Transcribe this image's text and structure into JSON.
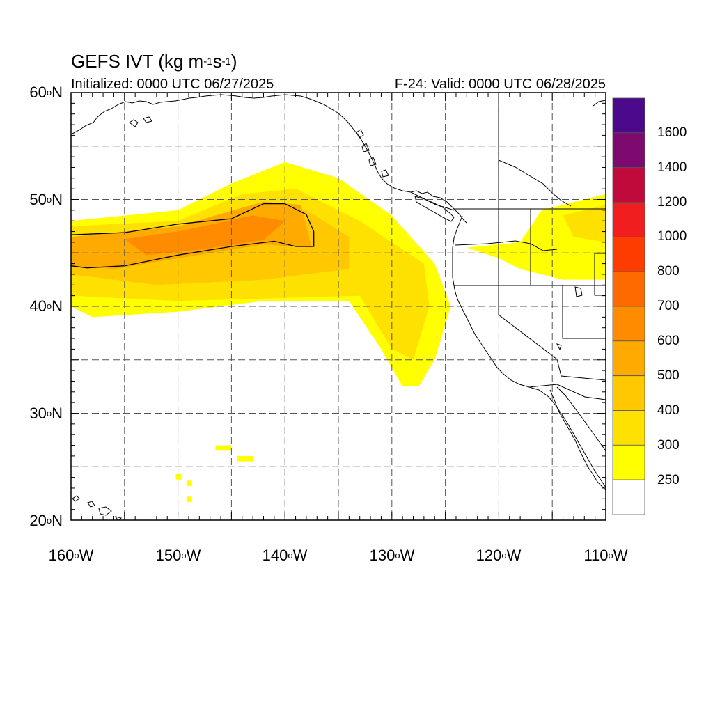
{
  "header": {
    "title": "GEFS IVT (kg m",
    "title_exp1": "-1",
    "title_mid": "s",
    "title_exp2": "-1",
    "title_close": ")",
    "initialized": "Initialized: 0000 UTC 06/27/2025",
    "valid": "F-24: Valid: 0000 UTC 06/28/2025"
  },
  "axes": {
    "lat_labels": [
      {
        "deg": "60",
        "sym": "o",
        "hem": "N"
      },
      {
        "deg": "50",
        "sym": "o",
        "hem": "N"
      },
      {
        "deg": "40",
        "sym": "o",
        "hem": "N"
      },
      {
        "deg": "30",
        "sym": "o",
        "hem": "N"
      },
      {
        "deg": "20",
        "sym": "o",
        "hem": "N"
      }
    ],
    "lon_labels": [
      {
        "deg": "160",
        "sym": "o",
        "hem": "W"
      },
      {
        "deg": "150",
        "sym": "o",
        "hem": "W"
      },
      {
        "deg": "140",
        "sym": "o",
        "hem": "W"
      },
      {
        "deg": "130",
        "sym": "o",
        "hem": "W"
      },
      {
        "deg": "120",
        "sym": "o",
        "hem": "W"
      },
      {
        "deg": "110",
        "sym": "o",
        "hem": "W"
      }
    ],
    "lon_range": [
      -160,
      -110
    ],
    "lat_range": [
      20,
      60
    ],
    "grid": true
  },
  "colorbar": {
    "labels": [
      "1600",
      "1400",
      "1200",
      "1000",
      "800",
      "700",
      "600",
      "500",
      "400",
      "300",
      "250"
    ],
    "colors": [
      "#4b0a8c",
      "#7d0a6e",
      "#c00a3c",
      "#f01e1e",
      "#ff3c00",
      "#ff6a00",
      "#ff8c00",
      "#ffaa00",
      "#ffc800",
      "#ffe100",
      "#ffff00",
      "#ffffff"
    ]
  },
  "chart_data": {
    "type": "heatmap",
    "field": "IVT",
    "units": "kg m-1 s-1",
    "levels": [
      250,
      300,
      400,
      500,
      600,
      700,
      800,
      1000,
      1200,
      1400,
      1600
    ],
    "regions": [
      {
        "level": 250,
        "polygon": [
          [
            -160,
            48
          ],
          [
            -150,
            49
          ],
          [
            -145,
            51.5
          ],
          [
            -140,
            53.5
          ],
          [
            -135,
            52
          ],
          [
            -130,
            48.5
          ],
          [
            -126,
            44
          ],
          [
            -124.5,
            40
          ],
          [
            -126,
            35
          ],
          [
            -127.5,
            32.5
          ],
          [
            -129,
            32.5
          ],
          [
            -131,
            36
          ],
          [
            -134,
            40.5
          ],
          [
            -142,
            40.5
          ],
          [
            -150,
            39.5
          ],
          [
            -158,
            39
          ],
          [
            -160,
            40
          ]
        ]
      },
      {
        "level": 300,
        "polygon": [
          [
            -160,
            47.5
          ],
          [
            -150,
            48
          ],
          [
            -144,
            50.5
          ],
          [
            -139,
            51
          ],
          [
            -133,
            48
          ],
          [
            -127,
            44
          ],
          [
            -126.5,
            40
          ],
          [
            -128,
            35
          ],
          [
            -130,
            36
          ],
          [
            -133,
            41
          ],
          [
            -150,
            40.5
          ],
          [
            -160,
            41
          ]
        ]
      },
      {
        "level": 400,
        "polygon": [
          [
            -160,
            46.5
          ],
          [
            -150,
            47
          ],
          [
            -143,
            49.5
          ],
          [
            -138,
            49
          ],
          [
            -134,
            46.5
          ],
          [
            -134,
            43.5
          ],
          [
            -142,
            42.5
          ],
          [
            -152,
            42
          ],
          [
            -160,
            43
          ]
        ]
      },
      {
        "level": 500,
        "polygon": [
          [
            -160,
            46.5
          ],
          [
            -150,
            47.5
          ],
          [
            -142,
            49.8
          ],
          [
            -138.5,
            49.5
          ],
          [
            -137.5,
            45.5
          ],
          [
            -142,
            45.8
          ],
          [
            -150,
            44.5
          ],
          [
            -156,
            43.5
          ],
          [
            -160,
            43.8
          ]
        ]
      },
      {
        "level": 600,
        "polygon": [
          [
            -155,
            46.3
          ],
          [
            -150,
            47
          ],
          [
            -143,
            48.5
          ],
          [
            -140,
            48
          ],
          [
            -142,
            46.2
          ],
          [
            -148,
            45.3
          ],
          [
            -153,
            44.8
          ]
        ]
      },
      {
        "level": 250,
        "polygon": [
          [
            -116,
            49
          ],
          [
            -110,
            50.5
          ],
          [
            -110,
            42.5
          ],
          [
            -114,
            42.5
          ],
          [
            -118,
            43.5
          ],
          [
            -120,
            44.5
          ],
          [
            -123,
            45.5
          ],
          [
            -118,
            46
          ]
        ]
      },
      {
        "level": 300,
        "polygon": [
          [
            -114,
            48.5
          ],
          [
            -110,
            49.5
          ],
          [
            -110,
            46
          ],
          [
            -113,
            46.5
          ]
        ]
      },
      {
        "level": 250,
        "polygon": [
          [
            -146.5,
            27
          ],
          [
            -145,
            27
          ],
          [
            -145,
            26.5
          ],
          [
            -146.5,
            26.5
          ]
        ]
      },
      {
        "level": 250,
        "polygon": [
          [
            -144.5,
            26
          ],
          [
            -143,
            26
          ],
          [
            -143,
            25.5
          ],
          [
            -144.5,
            25.5
          ]
        ]
      },
      {
        "level": 250,
        "polygon": [
          [
            -150.2,
            24.3
          ],
          [
            -149.7,
            24.3
          ],
          [
            -149.7,
            23.8
          ],
          [
            -150.2,
            23.8
          ]
        ]
      },
      {
        "level": 250,
        "polygon": [
          [
            -149.2,
            23.7
          ],
          [
            -148.7,
            23.7
          ],
          [
            -148.7,
            23.2
          ],
          [
            -149.2,
            23.2
          ]
        ]
      },
      {
        "level": 250,
        "polygon": [
          [
            -149.2,
            22.2
          ],
          [
            -148.7,
            22.2
          ],
          [
            -148.7,
            21.7
          ],
          [
            -149.2,
            21.7
          ]
        ]
      }
    ],
    "contour_500": [
      [
        -160,
        46.7
      ],
      [
        -155,
        46.9
      ],
      [
        -150,
        47.7
      ],
      [
        -145,
        48.2
      ],
      [
        -142,
        49.6
      ],
      [
        -140,
        49.6
      ],
      [
        -138,
        48.6
      ],
      [
        -137.3,
        47
      ],
      [
        -137.3,
        45.6
      ],
      [
        -139,
        45.6
      ],
      [
        -141,
        46.1
      ],
      [
        -145,
        45.6
      ],
      [
        -150,
        44.8
      ],
      [
        -155,
        43.8
      ],
      [
        -158.5,
        43.6
      ],
      [
        -160,
        43.8
      ]
    ]
  }
}
